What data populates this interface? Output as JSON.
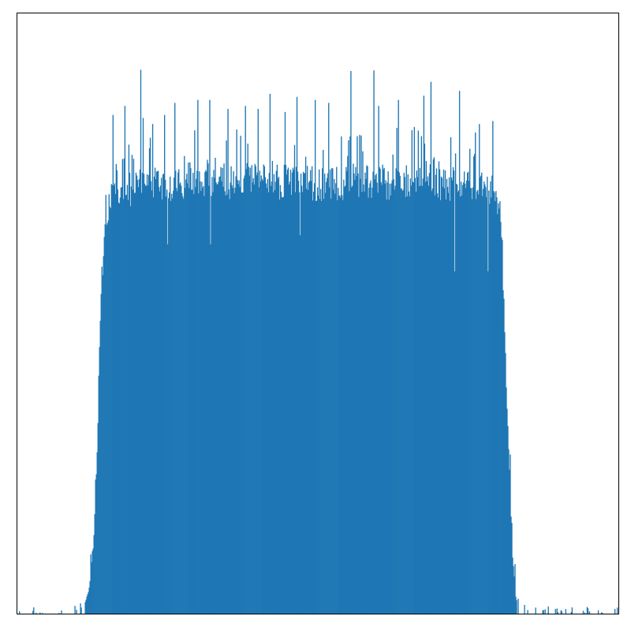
{
  "chart_data": {
    "type": "bar",
    "subtype": "histogram",
    "title": "",
    "xlabel": "",
    "ylabel": "",
    "axes_ticks_visible": false,
    "grid": false,
    "legend": "none",
    "bar_color": "#1f77b4",
    "frame_color": "#000000",
    "background_color": "#ffffff",
    "xlim": [
      0,
      1
    ],
    "ylim": [
      0,
      1
    ],
    "bins": 760,
    "shape_profile": [
      [
        0.0,
        0.0
      ],
      [
        0.07,
        0.0
      ],
      [
        0.085,
        0.004
      ],
      [
        0.11,
        0.01
      ],
      [
        0.12,
        0.04
      ],
      [
        0.128,
        0.12
      ],
      [
        0.133,
        0.25
      ],
      [
        0.137,
        0.42
      ],
      [
        0.141,
        0.56
      ],
      [
        0.147,
        0.65
      ],
      [
        0.158,
        0.7
      ],
      [
        0.2,
        0.71
      ],
      [
        0.3,
        0.72
      ],
      [
        0.4,
        0.72
      ],
      [
        0.5,
        0.715
      ],
      [
        0.6,
        0.72
      ],
      [
        0.7,
        0.715
      ],
      [
        0.78,
        0.71
      ],
      [
        0.8,
        0.69
      ],
      [
        0.806,
        0.6
      ],
      [
        0.81,
        0.46
      ],
      [
        0.815,
        0.32
      ],
      [
        0.822,
        0.11
      ],
      [
        0.828,
        0.03
      ],
      [
        0.835,
        0.006
      ],
      [
        0.87,
        0.002
      ],
      [
        1.0,
        0.0
      ]
    ],
    "spikes": [
      {
        "x": 0.206,
        "y": 0.905
      },
      {
        "x": 0.18,
        "y": 0.845
      },
      {
        "x": 0.21,
        "y": 0.825
      },
      {
        "x": 0.555,
        "y": 0.903
      },
      {
        "x": 0.593,
        "y": 0.904
      },
      {
        "x": 0.687,
        "y": 0.885
      },
      {
        "x": 0.735,
        "y": 0.87
      },
      {
        "x": 0.675,
        "y": 0.862
      },
      {
        "x": 0.42,
        "y": 0.865
      },
      {
        "x": 0.465,
        "y": 0.86
      },
      {
        "x": 0.495,
        "y": 0.855
      },
      {
        "x": 0.3,
        "y": 0.855
      },
      {
        "x": 0.32,
        "y": 0.855
      },
      {
        "x": 0.633,
        "y": 0.855
      },
      {
        "x": 0.262,
        "y": 0.85
      },
      {
        "x": 0.518,
        "y": 0.85
      },
      {
        "x": 0.38,
        "y": 0.845
      },
      {
        "x": 0.4,
        "y": 0.84
      },
      {
        "x": 0.245,
        "y": 0.83
      },
      {
        "x": 0.768,
        "y": 0.815
      },
      {
        "x": 0.79,
        "y": 0.82
      },
      {
        "x": 0.16,
        "y": 0.83
      },
      {
        "x": 0.225,
        "y": 0.815
      },
      {
        "x": 0.35,
        "y": 0.84
      },
      {
        "x": 0.445,
        "y": 0.835
      },
      {
        "x": 0.6,
        "y": 0.845
      },
      {
        "x": 0.66,
        "y": 0.81
      }
    ],
    "dips": [
      {
        "x": 0.727,
        "y": 0.57
      },
      {
        "x": 0.782,
        "y": 0.57
      },
      {
        "x": 0.25,
        "y": 0.615
      },
      {
        "x": 0.322,
        "y": 0.615
      },
      {
        "x": 0.47,
        "y": 0.63
      }
    ],
    "seed": 1337
  }
}
